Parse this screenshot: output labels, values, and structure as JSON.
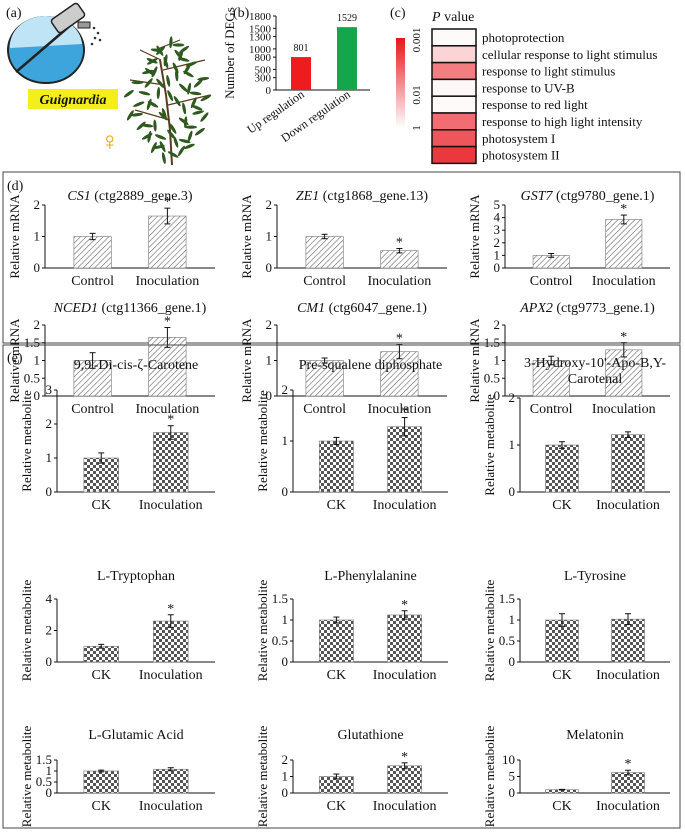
{
  "panels": {
    "a": {
      "label": "(a)",
      "pathogen": "Guignardia",
      "sex_symbol": "♀",
      "colors": {
        "tag": "#f4ee1a",
        "bottle": "#3ea5dc",
        "plant": "#2f5a1f"
      }
    },
    "b": {
      "label": "(b)",
      "chart_data": {
        "type": "bar",
        "title": "",
        "ylabel": "Number of DEGs",
        "ylim": [
          0,
          1800
        ],
        "yticks": [
          0,
          300,
          500,
          800,
          1000,
          1300,
          1500,
          1800
        ],
        "categories": [
          "Up regulation",
          "Down regulation"
        ],
        "values": [
          801,
          1529
        ],
        "value_labels": [
          "801",
          "1529"
        ],
        "colors": [
          "#ee1c1c",
          "#14a64b"
        ]
      }
    },
    "c": {
      "label": "(c)",
      "title_italic": "P",
      "title_rest": " value",
      "scale_labels": [
        "0.001",
        "0.01",
        "1"
      ],
      "chart_data": {
        "type": "heatmap",
        "terms": [
          "photoprotection",
          "cellular response to light stimulus",
          "response to light stimulus",
          "response to UV-B",
          "response to red light",
          "response to high light intensity",
          "photosystem I",
          "photosystem II"
        ],
        "intensity": [
          0.02,
          0.18,
          0.55,
          0.03,
          0.02,
          0.62,
          0.72,
          0.85
        ],
        "color_high": "#e8141c",
        "color_low": "#ffffff"
      }
    },
    "d": {
      "label": "(d)",
      "chart_data": [
        {
          "type": "bar",
          "gene": "CS1",
          "id": " (ctg2889_gene.3)",
          "ylabel": "Relative mRNA",
          "categories": [
            "Control",
            "Inoculation"
          ],
          "values": [
            1.0,
            1.65
          ],
          "errors": [
            0.1,
            0.25
          ],
          "sig": [
            false,
            true
          ],
          "ylim": [
            0,
            2
          ],
          "yticks": [
            "0",
            "1",
            "2"
          ]
        },
        {
          "type": "bar",
          "gene": "ZE1",
          "id": " (ctg1868_gene.13)",
          "ylabel": "Relative mRNA",
          "categories": [
            "Control",
            "Inoculation"
          ],
          "values": [
            1.0,
            0.55
          ],
          "errors": [
            0.07,
            0.07
          ],
          "sig": [
            false,
            true
          ],
          "ylim": [
            0,
            2
          ],
          "yticks": [
            "0",
            "1",
            "2"
          ]
        },
        {
          "type": "bar",
          "gene": "GST7",
          "id": " (ctg9780_gene.1)",
          "ylabel": "Relative mRNA",
          "categories": [
            "Control",
            "Inoculation"
          ],
          "values": [
            1.0,
            3.85
          ],
          "errors": [
            0.15,
            0.35
          ],
          "sig": [
            false,
            true
          ],
          "ylim": [
            0,
            5
          ],
          "yticks": [
            "0",
            "1",
            "2",
            "3",
            "4",
            "5"
          ]
        },
        {
          "type": "bar",
          "gene": "NCED1",
          "id": " (ctg11366_gene.1)",
          "ylabel": "Relative mRNA",
          "categories": [
            "Control",
            "Inoculation"
          ],
          "values": [
            1.0,
            1.65
          ],
          "errors": [
            0.22,
            0.28
          ],
          "sig": [
            false,
            true
          ],
          "ylim": [
            0,
            2
          ],
          "yticks": [
            "0",
            "0.5",
            "1",
            "1.5",
            "2"
          ]
        },
        {
          "type": "bar",
          "gene": "CM1",
          "id": " (ctg6047_gene.1)",
          "ylabel": "Relative mRNA",
          "categories": [
            "Control",
            "Inoculation"
          ],
          "values": [
            1.0,
            1.25
          ],
          "errors": [
            0.07,
            0.2
          ],
          "sig": [
            false,
            true
          ],
          "ylim": [
            0,
            2
          ],
          "yticks": [
            "0",
            "1",
            "2"
          ]
        },
        {
          "type": "bar",
          "gene": "APX2",
          "id": " (ctg9773_gene.1)",
          "ylabel": "Relative mRNA",
          "categories": [
            "Control",
            "Inoculation"
          ],
          "values": [
            1.0,
            1.3
          ],
          "errors": [
            0.12,
            0.2
          ],
          "sig": [
            false,
            true
          ],
          "ylim": [
            0,
            2
          ],
          "yticks": [
            "0",
            "0.5",
            "1",
            "1.5",
            "2"
          ]
        }
      ]
    },
    "e": {
      "label": "(e)",
      "chart_data": [
        {
          "type": "bar",
          "title": "9,9'-Di-cis-ζ-Carotene",
          "ylabel": "Relative metabolite",
          "categories": [
            "CK",
            "Inoculation"
          ],
          "values": [
            1.0,
            1.75
          ],
          "errors": [
            0.15,
            0.2
          ],
          "sig": [
            false,
            true
          ],
          "ylim": [
            0,
            3
          ],
          "yticks": [
            "0",
            "1",
            "2",
            "3"
          ]
        },
        {
          "type": "bar",
          "title": "Pre-squalene diphosphate",
          "ylabel": "Relative metabolite",
          "categories": [
            "CK",
            "Inoculation"
          ],
          "values": [
            1.0,
            1.28
          ],
          "errors": [
            0.07,
            0.18
          ],
          "sig": [
            false,
            true
          ],
          "ylim": [
            0,
            2
          ],
          "yticks": [
            "0",
            "1",
            "2"
          ]
        },
        {
          "type": "bar",
          "title": "3-Hydroxy-10'-Apo-B,Y-",
          "title2": "Carotenal",
          "ylabel": "Relative metabolite",
          "categories": [
            "CK",
            "Inoculation"
          ],
          "values": [
            1.0,
            1.22
          ],
          "errors": [
            0.07,
            0.06
          ],
          "sig": [
            false,
            false
          ],
          "ylim": [
            0,
            2
          ],
          "yticks": [
            "0",
            "1",
            "2"
          ]
        },
        {
          "type": "bar",
          "title": "L-Tryptophan",
          "ylabel": "Relative metabolite",
          "categories": [
            "CK",
            "Inoculation"
          ],
          "values": [
            1.0,
            2.6
          ],
          "errors": [
            0.12,
            0.4
          ],
          "sig": [
            false,
            true
          ],
          "ylim": [
            0,
            4
          ],
          "yticks": [
            "0",
            "2",
            "4"
          ]
        },
        {
          "type": "bar",
          "title": "L-Phenylalanine",
          "ylabel": "Relative metabolite",
          "categories": [
            "CK",
            "Inoculation"
          ],
          "values": [
            1.0,
            1.12
          ],
          "errors": [
            0.07,
            0.1
          ],
          "sig": [
            false,
            true
          ],
          "ylim": [
            0,
            1.5
          ],
          "yticks": [
            "0",
            "0.5",
            "1",
            "1.5"
          ]
        },
        {
          "type": "bar",
          "title": "L-Tyrosine",
          "ylabel": "Relative metabolite",
          "categories": [
            "CK",
            "Inoculation"
          ],
          "values": [
            1.0,
            1.02
          ],
          "errors": [
            0.15,
            0.13
          ],
          "sig": [
            false,
            false
          ],
          "ylim": [
            0,
            1.5
          ],
          "yticks": [
            "0",
            "0.5",
            "1",
            "1.5"
          ]
        },
        {
          "type": "bar",
          "title": "L-Glutamic Acid",
          "ylabel": "Relative metabolite",
          "categories": [
            "CK",
            "Inoculation"
          ],
          "values": [
            1.0,
            1.08
          ],
          "errors": [
            0.04,
            0.07
          ],
          "sig": [
            false,
            false
          ],
          "ylim": [
            0,
            1.5
          ],
          "yticks": [
            "0",
            "0.5",
            "1",
            "1.5"
          ]
        },
        {
          "type": "bar",
          "title": "Glutathione",
          "ylabel": "Relative metabolite",
          "categories": [
            "CK",
            "Inoculation"
          ],
          "values": [
            1.0,
            1.65
          ],
          "errors": [
            0.15,
            0.18
          ],
          "sig": [
            false,
            true
          ],
          "ylim": [
            0,
            2
          ],
          "yticks": [
            "0",
            "1",
            "2"
          ]
        },
        {
          "type": "bar",
          "title": "Melatonin",
          "ylabel": "Relative metabolite",
          "categories": [
            "CK",
            "Inoculation"
          ],
          "values": [
            1.0,
            6.2
          ],
          "errors": [
            0.1,
            0.7
          ],
          "sig": [
            false,
            true
          ],
          "ylim": [
            0,
            10
          ],
          "yticks": [
            "0",
            "5",
            "10"
          ]
        }
      ]
    }
  }
}
